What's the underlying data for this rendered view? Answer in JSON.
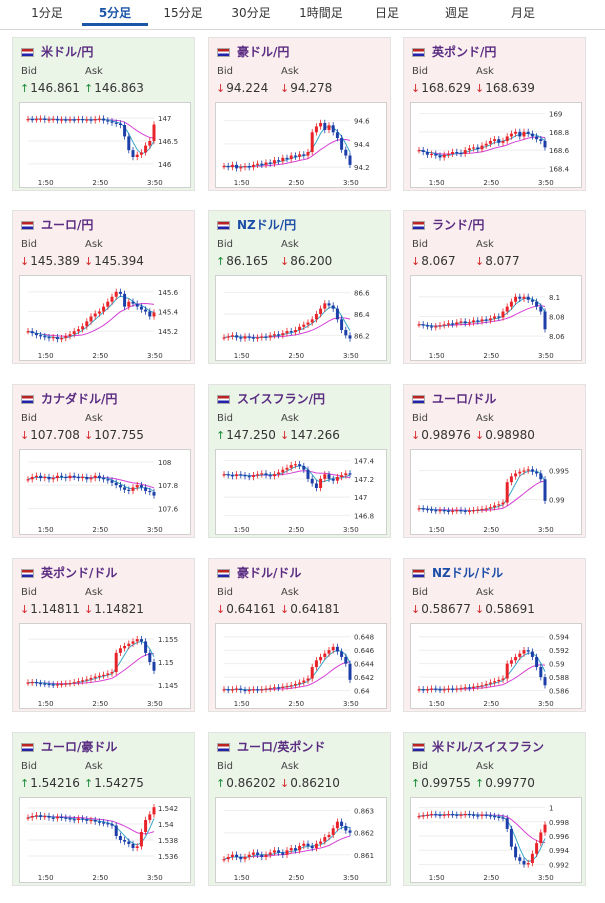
{
  "tabs": [
    {
      "label": "1分足",
      "active": false
    },
    {
      "label": "5分足",
      "active": true
    },
    {
      "label": "15分足",
      "active": false
    },
    {
      "label": "30分足",
      "active": false
    },
    {
      "label": "1時間足",
      "active": false
    },
    {
      "label": "日足",
      "active": false
    },
    {
      "label": "週足",
      "active": false
    },
    {
      "label": "月足",
      "active": false
    }
  ],
  "bid_label": "Bid",
  "ask_label": "Ask",
  "x_ticks": [
    "1:50",
    "2:50",
    "3:50"
  ],
  "colors": {
    "up_arrow": "#1a8a35",
    "down_arrow": "#d6262a",
    "candle_up": "#e8242a",
    "candle_down": "#1c3ea8",
    "ma1": "#d640d6",
    "ma2": "#3aa6c8",
    "title_purple": "#5a2d82",
    "title_blue": "#1c4ea8",
    "card_up_bg": "#eaf4e7",
    "card_down_bg": "#fbeeee"
  },
  "cards": [
    {
      "name": "米ドル/円",
      "flag_icon": "us-flag-icon",
      "bg": "up",
      "bid": "146.861",
      "bid_dir": "up",
      "ask": "146.863",
      "ask_dir": "up",
      "y_ticks": [
        "147",
        "146.5",
        "146"
      ],
      "chart_data": {
        "type": "line",
        "ylim": [
          145.8,
          147.2
        ],
        "close": [
          146.98,
          146.97,
          146.98,
          146.99,
          146.96,
          146.97,
          146.98,
          146.95,
          146.97,
          146.96,
          146.97,
          146.96,
          146.98,
          146.96,
          146.97,
          146.95,
          146.98,
          146.99,
          146.95,
          146.93,
          146.9,
          146.88,
          146.85,
          146.6,
          146.3,
          146.15,
          146.2,
          146.25,
          146.4,
          146.5,
          146.86
        ]
      }
    },
    {
      "name": "豪ドル/円",
      "flag_icon": "au-flag-icon",
      "bg": "down",
      "bid": "94.224",
      "bid_dir": "down",
      "ask": "94.278",
      "ask_dir": "down",
      "y_ticks": [
        "94.6",
        "94.4",
        "94.2"
      ],
      "chart_data": {
        "type": "line",
        "ylim": [
          94.15,
          94.7
        ],
        "close": [
          94.21,
          94.2,
          94.22,
          94.19,
          94.2,
          94.21,
          94.2,
          94.22,
          94.23,
          94.22,
          94.24,
          94.23,
          94.26,
          94.25,
          94.28,
          94.27,
          94.3,
          94.29,
          94.31,
          94.3,
          94.33,
          94.5,
          94.55,
          94.58,
          94.52,
          94.56,
          94.5,
          94.45,
          94.35,
          94.3,
          94.22
        ]
      }
    },
    {
      "name": "英ポンド/円",
      "flag_icon": "gb-flag-icon",
      "bg": "down",
      "bid": "168.629",
      "bid_dir": "down",
      "ask": "168.639",
      "ask_dir": "down",
      "y_ticks": [
        "169",
        "168.8",
        "168.6",
        "168.4"
      ],
      "chart_data": {
        "type": "line",
        "ylim": [
          168.35,
          169.05
        ],
        "close": [
          168.6,
          168.58,
          168.55,
          168.56,
          168.54,
          168.52,
          168.55,
          168.56,
          168.58,
          168.57,
          168.56,
          168.6,
          168.62,
          168.63,
          168.61,
          168.65,
          168.67,
          168.7,
          168.72,
          168.68,
          168.7,
          168.75,
          168.78,
          168.8,
          168.75,
          168.8,
          168.78,
          168.75,
          168.72,
          168.7,
          168.63
        ]
      }
    },
    {
      "name": "ユーロ/円",
      "flag_icon": "eu-flag-icon",
      "bg": "down",
      "bid": "145.389",
      "bid_dir": "down",
      "ask": "145.394",
      "ask_dir": "down",
      "y_ticks": [
        "145.6",
        "145.4",
        "145.2"
      ],
      "chart_data": {
        "type": "line",
        "ylim": [
          145.05,
          145.7
        ],
        "close": [
          145.2,
          145.18,
          145.16,
          145.15,
          145.14,
          145.13,
          145.14,
          145.12,
          145.13,
          145.15,
          145.17,
          145.2,
          145.22,
          145.25,
          145.3,
          145.35,
          145.38,
          145.4,
          145.45,
          145.5,
          145.55,
          145.6,
          145.58,
          145.45,
          145.5,
          145.48,
          145.45,
          145.42,
          145.4,
          145.35,
          145.39
        ]
      }
    },
    {
      "name": "NZドル/円",
      "flag_icon": "nz-flag-icon",
      "bg": "up",
      "bid": "86.165",
      "bid_dir": "up",
      "ask": "86.200",
      "ask_dir": "down",
      "y_ticks": [
        "86.6",
        "86.4",
        "86.2"
      ],
      "chart_data": {
        "type": "line",
        "ylim": [
          86.1,
          86.7
        ],
        "close": [
          86.18,
          86.19,
          86.2,
          86.18,
          86.17,
          86.19,
          86.18,
          86.17,
          86.18,
          86.19,
          86.18,
          86.2,
          86.21,
          86.2,
          86.22,
          86.24,
          86.23,
          86.25,
          86.28,
          86.3,
          86.32,
          86.35,
          86.4,
          86.45,
          86.5,
          86.48,
          86.45,
          86.35,
          86.25,
          86.2,
          86.17
        ]
      }
    },
    {
      "name": "ランド/円",
      "flag_icon": "za-flag-icon",
      "bg": "down",
      "bid": "8.067",
      "bid_dir": "down",
      "ask": "8.077",
      "ask_dir": "down",
      "y_ticks": [
        "8.1",
        "8.08",
        "8.06"
      ],
      "chart_data": {
        "type": "line",
        "ylim": [
          8.05,
          8.115
        ],
        "close": [
          8.072,
          8.071,
          8.07,
          8.069,
          8.07,
          8.071,
          8.072,
          8.073,
          8.072,
          8.074,
          8.075,
          8.073,
          8.074,
          8.076,
          8.075,
          8.077,
          8.076,
          8.078,
          8.08,
          8.079,
          8.085,
          8.09,
          8.095,
          8.1,
          8.098,
          8.1,
          8.097,
          8.095,
          8.09,
          8.085,
          8.067
        ]
      }
    },
    {
      "name": "カナダドル/円",
      "flag_icon": "ca-flag-icon",
      "bg": "down",
      "bid": "107.708",
      "bid_dir": "down",
      "ask": "107.755",
      "ask_dir": "down",
      "y_ticks": [
        "108",
        "107.8",
        "107.6"
      ],
      "chart_data": {
        "type": "line",
        "ylim": [
          107.5,
          108.05
        ],
        "close": [
          107.85,
          107.87,
          107.88,
          107.86,
          107.87,
          107.85,
          107.86,
          107.88,
          107.87,
          107.86,
          107.88,
          107.87,
          107.86,
          107.87,
          107.85,
          107.86,
          107.88,
          107.86,
          107.85,
          107.84,
          107.82,
          107.8,
          107.78,
          107.76,
          107.75,
          107.78,
          107.8,
          107.78,
          107.75,
          107.74,
          107.71
        ]
      }
    },
    {
      "name": "スイスフラン/円",
      "flag_icon": "ch-flag-icon",
      "bg": "up",
      "bid": "147.250",
      "bid_dir": "up",
      "ask": "147.266",
      "ask_dir": "down",
      "y_ticks": [
        "147.4",
        "147.2",
        "147",
        "146.8"
      ],
      "chart_data": {
        "type": "line",
        "ylim": [
          146.75,
          147.45
        ],
        "close": [
          147.25,
          147.24,
          147.23,
          147.25,
          147.24,
          147.23,
          147.22,
          147.24,
          147.25,
          147.26,
          147.24,
          147.23,
          147.25,
          147.27,
          147.3,
          147.32,
          147.35,
          147.36,
          147.34,
          147.3,
          147.2,
          147.15,
          147.1,
          147.2,
          147.25,
          147.2,
          147.18,
          147.22,
          147.24,
          147.26,
          147.25
        ]
      }
    },
    {
      "name": "ユーロ/ドル",
      "flag_icon": "eu-us-flag-icon",
      "bg": "down",
      "bid": "0.98976",
      "bid_dir": "down",
      "ask": "0.98980",
      "ask_dir": "down",
      "y_ticks": [
        "0.995",
        "0.99"
      ],
      "chart_data": {
        "type": "line",
        "ylim": [
          0.9865,
          0.9975
        ],
        "close": [
          0.9885,
          0.9884,
          0.9883,
          0.9882,
          0.9881,
          0.9882,
          0.9881,
          0.988,
          0.9881,
          0.9882,
          0.9881,
          0.988,
          0.9881,
          0.9882,
          0.9883,
          0.9884,
          0.9885,
          0.9887,
          0.989,
          0.9892,
          0.9895,
          0.993,
          0.994,
          0.9945,
          0.9948,
          0.995,
          0.9952,
          0.9948,
          0.9945,
          0.9935,
          0.9898
        ]
      }
    },
    {
      "name": "英ポンド/ドル",
      "flag_icon": "gb-us-flag-icon",
      "bg": "down",
      "bid": "1.14811",
      "bid_dir": "down",
      "ask": "1.14821",
      "ask_dir": "down",
      "y_ticks": [
        "1.155",
        "1.15",
        "1.145"
      ],
      "chart_data": {
        "type": "line",
        "ylim": [
          1.143,
          1.157
        ],
        "close": [
          1.1455,
          1.1456,
          1.1454,
          1.1453,
          1.1452,
          1.1451,
          1.145,
          1.1451,
          1.1452,
          1.1453,
          1.1454,
          1.1456,
          1.1458,
          1.146,
          1.1462,
          1.1465,
          1.1468,
          1.147,
          1.1472,
          1.1475,
          1.1478,
          1.152,
          1.153,
          1.1535,
          1.154,
          1.1545,
          1.155,
          1.1545,
          1.152,
          1.15,
          1.1481
        ]
      }
    },
    {
      "name": "豪ドル/ドル",
      "flag_icon": "au-us-flag-icon",
      "bg": "down",
      "bid": "0.64161",
      "bid_dir": "down",
      "ask": "0.64181",
      "ask_dir": "down",
      "y_ticks": [
        "0.648",
        "0.646",
        "0.644",
        "0.642",
        "0.64"
      ],
      "chart_data": {
        "type": "line",
        "ylim": [
          0.6395,
          0.649
        ],
        "close": [
          0.6402,
          0.6401,
          0.6402,
          0.6403,
          0.6401,
          0.64,
          0.6401,
          0.6402,
          0.6401,
          0.6402,
          0.6403,
          0.6404,
          0.6405,
          0.6404,
          0.6406,
          0.6407,
          0.6408,
          0.641,
          0.6412,
          0.6415,
          0.6418,
          0.6435,
          0.6445,
          0.645,
          0.6455,
          0.646,
          0.6465,
          0.6458,
          0.645,
          0.644,
          0.6416
        ]
      }
    },
    {
      "name": "NZドル/ドル",
      "flag_icon": "nz-us-flag-icon",
      "bg": "down",
      "bid": "0.58677",
      "bid_dir": "down",
      "ask": "0.58691",
      "ask_dir": "down",
      "y_ticks": [
        "0.594",
        "0.592",
        "0.59",
        "0.588",
        "0.586"
      ],
      "chart_data": {
        "type": "line",
        "ylim": [
          0.5855,
          0.595
        ],
        "close": [
          0.5862,
          0.5861,
          0.5862,
          0.5863,
          0.5862,
          0.5861,
          0.5862,
          0.5863,
          0.5862,
          0.5863,
          0.5864,
          0.5865,
          0.5864,
          0.5866,
          0.5867,
          0.5868,
          0.587,
          0.5872,
          0.5874,
          0.5876,
          0.5878,
          0.59,
          0.5905,
          0.591,
          0.5915,
          0.592,
          0.5918,
          0.591,
          0.5895,
          0.588,
          0.5868
        ]
      }
    },
    {
      "name": "ユーロ/豪ドル",
      "flag_icon": "eu-au-flag-icon",
      "bg": "up",
      "bid": "1.54216",
      "bid_dir": "up",
      "ask": "1.54275",
      "ask_dir": "up",
      "y_ticks": [
        "1.542",
        "1.54",
        "1.538",
        "1.536"
      ],
      "chart_data": {
        "type": "line",
        "ylim": [
          1.5345,
          1.5425
        ],
        "close": [
          1.5408,
          1.541,
          1.5411,
          1.5409,
          1.541,
          1.5408,
          1.5407,
          1.5409,
          1.5408,
          1.5407,
          1.5406,
          1.5405,
          1.5407,
          1.5406,
          1.5404,
          1.5405,
          1.5403,
          1.5402,
          1.5401,
          1.54,
          1.5398,
          1.5385,
          1.538,
          1.5378,
          1.5375,
          1.537,
          1.5372,
          1.539,
          1.5405,
          1.5412,
          1.5421
        ]
      }
    },
    {
      "name": "ユーロ/英ポンド",
      "flag_icon": "eu-gb-flag-icon",
      "bg": "up",
      "bid": "0.86202",
      "bid_dir": "up",
      "ask": "0.86210",
      "ask_dir": "down",
      "y_ticks": [
        "0.863",
        "0.862",
        "0.861"
      ],
      "chart_data": {
        "type": "line",
        "ylim": [
          0.8604,
          0.8633
        ],
        "close": [
          0.8608,
          0.8609,
          0.861,
          0.8609,
          0.8608,
          0.8609,
          0.861,
          0.8611,
          0.861,
          0.8609,
          0.861,
          0.8611,
          0.8612,
          0.8611,
          0.861,
          0.8612,
          0.8613,
          0.8612,
          0.8614,
          0.8615,
          0.8614,
          0.8613,
          0.8615,
          0.8616,
          0.8618,
          0.8619,
          0.8622,
          0.8625,
          0.8623,
          0.8621,
          0.862
        ]
      }
    },
    {
      "name": "米ドル/スイスフラン",
      "flag_icon": "us-ch-flag-icon",
      "bg": "up",
      "bid": "0.99755",
      "bid_dir": "up",
      "ask": "0.99770",
      "ask_dir": "up",
      "y_ticks": [
        "1",
        "0.998",
        "0.996",
        "0.994",
        "0.992"
      ],
      "chart_data": {
        "type": "line",
        "ylim": [
          0.9915,
          1.0005
        ],
        "close": [
          0.9988,
          0.9989,
          0.999,
          0.9991,
          0.999,
          0.9989,
          0.999,
          0.9991,
          0.999,
          0.9989,
          0.999,
          0.9991,
          0.999,
          0.9989,
          0.9988,
          0.999,
          0.9989,
          0.9988,
          0.9987,
          0.9986,
          0.9985,
          0.997,
          0.9945,
          0.993,
          0.9925,
          0.992,
          0.9922,
          0.9935,
          0.995,
          0.9965,
          0.9976
        ]
      }
    }
  ]
}
